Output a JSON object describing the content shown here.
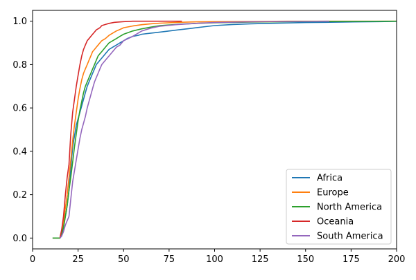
{
  "chart_data": {
    "type": "line",
    "title": "",
    "xlabel": "",
    "ylabel": "",
    "xlim": [
      0,
      200
    ],
    "ylim": [
      -0.05,
      1.05
    ],
    "xticks": [
      0,
      25,
      50,
      75,
      100,
      125,
      150,
      175,
      200
    ],
    "xtick_labels": [
      "0",
      "25",
      "50",
      "75",
      "100",
      "125",
      "150",
      "175",
      "200"
    ],
    "yticks": [
      0.0,
      0.2,
      0.4,
      0.6,
      0.8,
      1.0
    ],
    "ytick_labels": [
      "0.0",
      "0.2",
      "0.4",
      "0.6",
      "0.8",
      "1.0"
    ],
    "grid": false,
    "legend_position": "lower-right",
    "series": [
      {
        "name": "Africa",
        "color": "#1f77b4",
        "x": [
          11,
          14,
          15,
          16,
          17,
          18,
          19,
          20,
          21,
          22,
          23,
          24,
          25,
          26,
          27,
          28,
          29,
          30,
          31,
          32,
          33,
          34,
          35,
          36,
          37,
          38,
          39,
          40,
          42,
          44,
          46,
          48,
          50,
          52,
          55,
          58,
          60,
          65,
          70,
          75,
          80,
          85,
          90,
          95,
          100,
          110,
          120,
          130,
          140,
          150,
          160,
          170,
          180,
          190,
          200
        ],
        "y": [
          0.0,
          0.0,
          0.0,
          0.01,
          0.05,
          0.1,
          0.15,
          0.22,
          0.32,
          0.42,
          0.47,
          0.52,
          0.55,
          0.58,
          0.61,
          0.64,
          0.67,
          0.7,
          0.72,
          0.74,
          0.76,
          0.78,
          0.8,
          0.81,
          0.82,
          0.83,
          0.84,
          0.85,
          0.87,
          0.88,
          0.89,
          0.9,
          0.91,
          0.92,
          0.93,
          0.935,
          0.94,
          0.945,
          0.95,
          0.955,
          0.96,
          0.965,
          0.97,
          0.975,
          0.98,
          0.985,
          0.988,
          0.99,
          0.992,
          0.994,
          0.995,
          0.996,
          0.997,
          0.998,
          0.999
        ]
      },
      {
        "name": "Europe",
        "color": "#ff7f0e",
        "x": [
          11,
          14,
          15,
          16,
          17,
          18,
          19,
          20,
          21,
          22,
          23,
          24,
          25,
          26,
          27,
          28,
          29,
          30,
          31,
          32,
          33,
          34,
          35,
          36,
          37,
          38,
          40,
          42,
          44,
          46,
          48,
          50,
          55,
          60,
          65,
          70,
          75,
          80,
          90,
          100,
          120,
          140,
          160,
          200
        ],
        "y": [
          0.0,
          0.0,
          0.0,
          0.02,
          0.07,
          0.14,
          0.2,
          0.28,
          0.36,
          0.45,
          0.52,
          0.58,
          0.64,
          0.69,
          0.73,
          0.76,
          0.78,
          0.8,
          0.82,
          0.84,
          0.86,
          0.87,
          0.88,
          0.89,
          0.9,
          0.91,
          0.92,
          0.935,
          0.945,
          0.955,
          0.962,
          0.97,
          0.978,
          0.984,
          0.988,
          0.991,
          0.993,
          0.995,
          0.997,
          0.998,
          0.999,
          1.0,
          1.0,
          1.0
        ]
      },
      {
        "name": "North America",
        "color": "#2ca02c",
        "x": [
          11,
          14,
          15,
          16,
          17,
          18,
          19,
          20,
          21,
          22,
          23,
          24,
          25,
          26,
          27,
          28,
          29,
          30,
          31,
          32,
          33,
          34,
          35,
          36,
          37,
          38,
          40,
          42,
          44,
          46,
          48,
          50,
          55,
          60,
          65,
          70,
          80,
          90,
          100,
          120,
          140,
          160,
          200
        ],
        "y": [
          0.0,
          0.0,
          0.0,
          0.02,
          0.05,
          0.1,
          0.15,
          0.22,
          0.28,
          0.35,
          0.42,
          0.48,
          0.54,
          0.59,
          0.63,
          0.67,
          0.7,
          0.72,
          0.74,
          0.76,
          0.78,
          0.8,
          0.82,
          0.84,
          0.85,
          0.86,
          0.88,
          0.9,
          0.91,
          0.92,
          0.93,
          0.94,
          0.955,
          0.965,
          0.973,
          0.98,
          0.986,
          0.99,
          0.993,
          0.996,
          0.998,
          0.999,
          1.0
        ]
      },
      {
        "name": "Oceania",
        "color": "#d62728",
        "x": [
          15,
          16,
          17,
          18,
          19,
          20,
          21,
          22,
          23,
          24,
          25,
          26,
          27,
          28,
          29,
          30,
          31,
          32,
          33,
          34,
          35,
          36,
          37,
          38,
          40,
          42,
          45,
          50,
          55,
          60,
          70,
          82
        ],
        "y": [
          0.0,
          0.04,
          0.1,
          0.2,
          0.28,
          0.34,
          0.48,
          0.58,
          0.64,
          0.7,
          0.75,
          0.8,
          0.84,
          0.87,
          0.89,
          0.91,
          0.92,
          0.93,
          0.94,
          0.95,
          0.96,
          0.965,
          0.97,
          0.98,
          0.985,
          0.99,
          0.995,
          0.998,
          1.0,
          1.0,
          1.0,
          1.0
        ]
      },
      {
        "name": "South America",
        "color": "#9467bd",
        "x": [
          15,
          16,
          17,
          18,
          19,
          20,
          21,
          22,
          23,
          24,
          25,
          26,
          27,
          28,
          29,
          30,
          31,
          32,
          33,
          34,
          35,
          36,
          37,
          38,
          40,
          42,
          44,
          46,
          48,
          50,
          55,
          60,
          65,
          70,
          80,
          90,
          100,
          120,
          140,
          163
        ],
        "y": [
          0.0,
          0.01,
          0.03,
          0.06,
          0.08,
          0.1,
          0.18,
          0.26,
          0.31,
          0.36,
          0.41,
          0.46,
          0.5,
          0.53,
          0.56,
          0.6,
          0.63,
          0.66,
          0.69,
          0.72,
          0.74,
          0.76,
          0.78,
          0.8,
          0.82,
          0.84,
          0.86,
          0.88,
          0.89,
          0.91,
          0.93,
          0.955,
          0.968,
          0.977,
          0.985,
          0.99,
          0.994,
          0.997,
          0.999,
          1.0
        ]
      }
    ]
  }
}
